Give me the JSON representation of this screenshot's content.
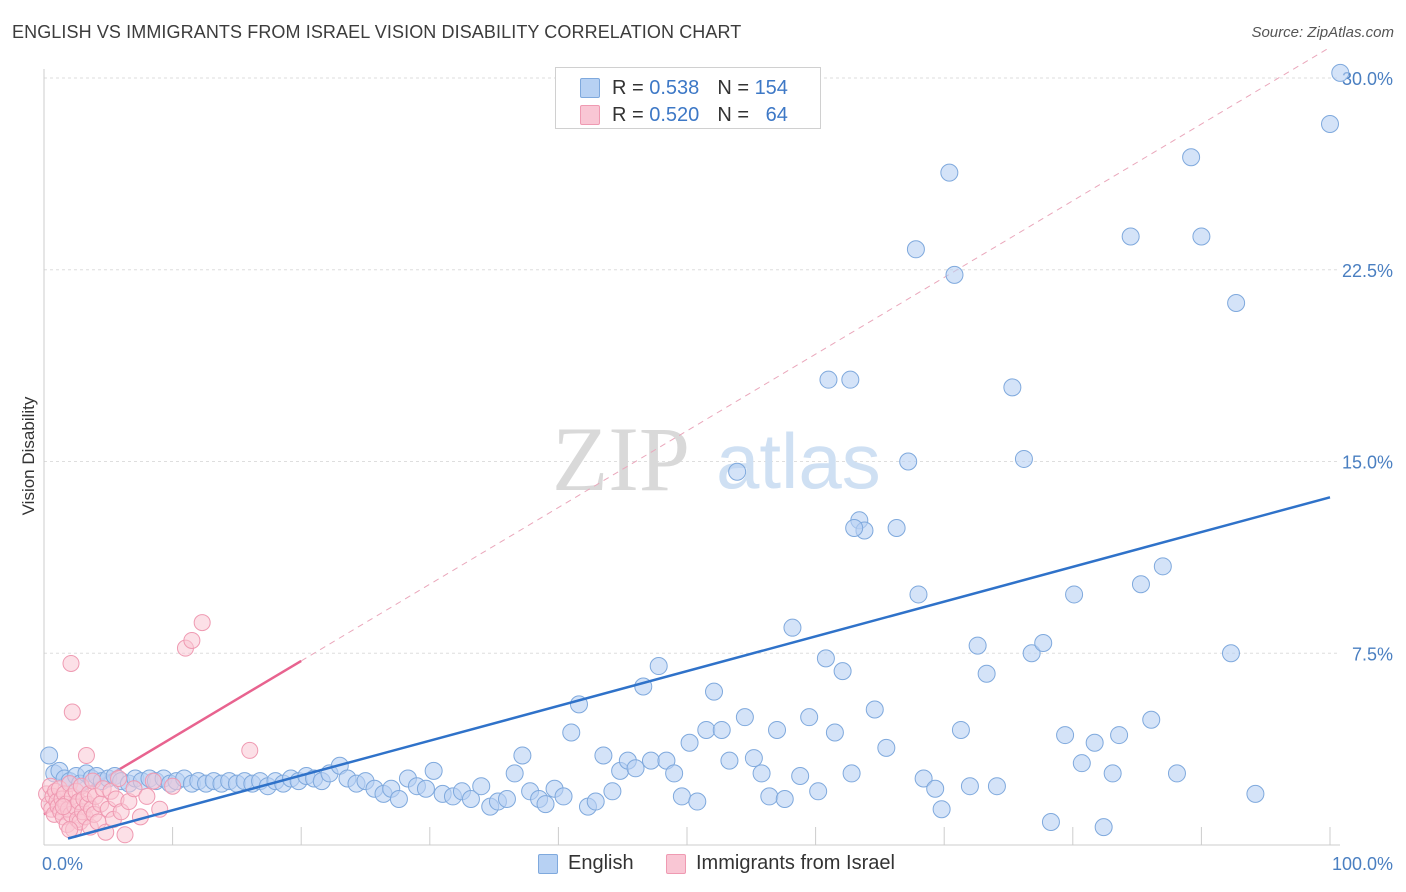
{
  "header": {
    "title": "ENGLISH VS IMMIGRANTS FROM ISRAEL VISION DISABILITY CORRELATION CHART",
    "source": "Source: ZipAtlas.com"
  },
  "legend": {
    "rows": [
      {
        "r_label": "R =",
        "r_value": "0.538",
        "n_label": "N =",
        "n_value": "154"
      },
      {
        "r_label": "R =",
        "r_value": "0.520",
        "n_label": "N =",
        "n_value": "64"
      }
    ],
    "bottom": [
      "English",
      "Immigrants from Israel"
    ]
  },
  "watermark": {
    "zip": "ZIP",
    "atlas": "atlas"
  },
  "colors": {
    "blue": "#4a7fc1",
    "blue_fill": "#b7d1f3",
    "pink": "#e8638f",
    "pink_fill": "#f9c6d4"
  },
  "chart_data": {
    "type": "scatter",
    "title": "ENGLISH VS IMMIGRANTS FROM ISRAEL VISION DISABILITY CORRELATION CHART",
    "xlabel": "",
    "ylabel": "Vision Disability",
    "xlim": [
      0,
      100
    ],
    "ylim": [
      0,
      30
    ],
    "x_tick_labels": [
      {
        "value": 0,
        "label": "0.0%"
      },
      {
        "value": 100,
        "label": "100.0%"
      }
    ],
    "y_tick_labels": [
      {
        "value": 7.5,
        "label": "7.5%"
      },
      {
        "value": 15,
        "label": "15.0%"
      },
      {
        "value": 22.5,
        "label": "22.5%"
      },
      {
        "value": 30,
        "label": "30.0%"
      }
    ],
    "series": [
      {
        "name": "English",
        "r": 0.538,
        "n": 154,
        "trend": {
          "x0": 0,
          "y0": 0,
          "x1": 100,
          "y1": 13.6
        },
        "points": [
          [
            0.4,
            3.5
          ],
          [
            0.8,
            2.8
          ],
          [
            1.2,
            2.9
          ],
          [
            1.6,
            2.6
          ],
          [
            2.0,
            2.5
          ],
          [
            2.5,
            2.7
          ],
          [
            2.8,
            2.4
          ],
          [
            3.3,
            2.8
          ],
          [
            3.7,
            2.6
          ],
          [
            4.1,
            2.7
          ],
          [
            4.5,
            2.5
          ],
          [
            5.0,
            2.6
          ],
          [
            5.5,
            2.7
          ],
          [
            6.0,
            2.5
          ],
          [
            6.6,
            2.4
          ],
          [
            7.1,
            2.6
          ],
          [
            7.6,
            2.5
          ],
          [
            8.2,
            2.6
          ],
          [
            8.7,
            2.5
          ],
          [
            9.3,
            2.6
          ],
          [
            9.8,
            2.4
          ],
          [
            10.3,
            2.5
          ],
          [
            10.9,
            2.6
          ],
          [
            11.5,
            2.4
          ],
          [
            12.0,
            2.5
          ],
          [
            12.6,
            2.4
          ],
          [
            13.2,
            2.5
          ],
          [
            13.8,
            2.4
          ],
          [
            14.4,
            2.5
          ],
          [
            15.0,
            2.4
          ],
          [
            15.6,
            2.5
          ],
          [
            16.2,
            2.4
          ],
          [
            16.8,
            2.5
          ],
          [
            17.4,
            2.3
          ],
          [
            18.0,
            2.5
          ],
          [
            18.6,
            2.4
          ],
          [
            19.2,
            2.6
          ],
          [
            19.8,
            2.5
          ],
          [
            20.4,
            2.7
          ],
          [
            21.0,
            2.6
          ],
          [
            21.6,
            2.5
          ],
          [
            22.2,
            2.8
          ],
          [
            23.0,
            3.1
          ],
          [
            23.6,
            2.6
          ],
          [
            24.3,
            2.4
          ],
          [
            25.0,
            2.5
          ],
          [
            25.7,
            2.2
          ],
          [
            26.4,
            2.0
          ],
          [
            27.0,
            2.2
          ],
          [
            27.6,
            1.8
          ],
          [
            28.3,
            2.6
          ],
          [
            29.0,
            2.3
          ],
          [
            29.7,
            2.2
          ],
          [
            30.3,
            2.9
          ],
          [
            31.0,
            2.0
          ],
          [
            31.8,
            1.9
          ],
          [
            32.5,
            2.1
          ],
          [
            33.2,
            1.8
          ],
          [
            34.0,
            2.3
          ],
          [
            34.7,
            1.5
          ],
          [
            35.3,
            1.7
          ],
          [
            36.0,
            1.8
          ],
          [
            36.6,
            2.8
          ],
          [
            37.2,
            3.5
          ],
          [
            37.8,
            2.1
          ],
          [
            38.5,
            1.8
          ],
          [
            39.0,
            1.6
          ],
          [
            39.7,
            2.2
          ],
          [
            40.4,
            1.9
          ],
          [
            41.0,
            4.4
          ],
          [
            41.6,
            5.5
          ],
          [
            42.3,
            1.5
          ],
          [
            42.9,
            1.7
          ],
          [
            43.5,
            3.5
          ],
          [
            44.2,
            2.1
          ],
          [
            44.8,
            2.9
          ],
          [
            45.4,
            3.3
          ],
          [
            46.0,
            3.0
          ],
          [
            46.6,
            6.2
          ],
          [
            47.2,
            3.3
          ],
          [
            47.8,
            7.0
          ],
          [
            48.4,
            3.3
          ],
          [
            49.0,
            2.8
          ],
          [
            49.6,
            1.9
          ],
          [
            50.2,
            4.0
          ],
          [
            50.8,
            1.7
          ],
          [
            51.5,
            4.5
          ],
          [
            52.1,
            6.0
          ],
          [
            52.7,
            4.5
          ],
          [
            53.3,
            3.3
          ],
          [
            53.9,
            14.6
          ],
          [
            54.5,
            5.0
          ],
          [
            55.2,
            3.4
          ],
          [
            55.8,
            2.8
          ],
          [
            56.4,
            1.9
          ],
          [
            57.0,
            4.5
          ],
          [
            57.6,
            1.8
          ],
          [
            58.2,
            8.5
          ],
          [
            58.8,
            2.7
          ],
          [
            59.5,
            5.0
          ],
          [
            60.2,
            2.1
          ],
          [
            60.8,
            7.3
          ],
          [
            61.0,
            18.2
          ],
          [
            61.5,
            4.4
          ],
          [
            62.1,
            6.8
          ],
          [
            62.8,
            2.8
          ],
          [
            63.4,
            12.7
          ],
          [
            63.8,
            12.3
          ],
          [
            64.6,
            5.3
          ],
          [
            65.5,
            3.8
          ],
          [
            66.3,
            12.4
          ],
          [
            67.2,
            15.0
          ],
          [
            67.8,
            23.3
          ],
          [
            68.0,
            9.8
          ],
          [
            68.4,
            2.6
          ],
          [
            69.3,
            2.2
          ],
          [
            69.8,
            1.4
          ],
          [
            70.4,
            26.3
          ],
          [
            70.8,
            22.3
          ],
          [
            71.3,
            4.5
          ],
          [
            72.0,
            2.3
          ],
          [
            72.6,
            7.8
          ],
          [
            73.3,
            6.7
          ],
          [
            74.1,
            2.3
          ],
          [
            75.3,
            17.9
          ],
          [
            76.2,
            15.1
          ],
          [
            76.8,
            7.5
          ],
          [
            77.7,
            7.9
          ],
          [
            78.3,
            0.9
          ],
          [
            79.4,
            4.3
          ],
          [
            80.1,
            9.8
          ],
          [
            80.7,
            3.2
          ],
          [
            81.7,
            4.0
          ],
          [
            82.4,
            0.7
          ],
          [
            83.1,
            2.8
          ],
          [
            83.6,
            4.3
          ],
          [
            84.5,
            23.8
          ],
          [
            85.3,
            10.2
          ],
          [
            86.1,
            4.9
          ],
          [
            87.0,
            10.9
          ],
          [
            88.1,
            2.8
          ],
          [
            89.2,
            26.9
          ],
          [
            90.0,
            23.8
          ],
          [
            92.3,
            7.5
          ],
          [
            92.7,
            21.2
          ],
          [
            94.2,
            2.0
          ],
          [
            100.0,
            28.2
          ],
          [
            100.8,
            30.2
          ],
          [
            62.7,
            18.2
          ],
          [
            63.0,
            12.4
          ]
        ]
      },
      {
        "name": "Immigrants from Israel",
        "r": 0.52,
        "n": 64,
        "trend": {
          "x0": 0,
          "y0": 1.2,
          "x1": 20,
          "y1": 7.2
        },
        "points": [
          [
            0.2,
            2.0
          ],
          [
            0.4,
            1.6
          ],
          [
            0.5,
            2.3
          ],
          [
            0.6,
            1.4
          ],
          [
            0.7,
            1.9
          ],
          [
            0.8,
            1.2
          ],
          [
            0.9,
            2.1
          ],
          [
            1.0,
            1.7
          ],
          [
            1.1,
            1.5
          ],
          [
            1.2,
            2.2
          ],
          [
            1.3,
            1.3
          ],
          [
            1.4,
            1.8
          ],
          [
            1.5,
            1.1
          ],
          [
            1.6,
            2.0
          ],
          [
            1.7,
            1.6
          ],
          [
            1.8,
            0.8
          ],
          [
            1.9,
            1.4
          ],
          [
            2.0,
            2.4
          ],
          [
            2.1,
            1.2
          ],
          [
            2.2,
            1.9
          ],
          [
            2.3,
            0.6
          ],
          [
            2.4,
            1.5
          ],
          [
            2.5,
            2.1
          ],
          [
            2.6,
            1.0
          ],
          [
            2.7,
            1.7
          ],
          [
            2.8,
            0.9
          ],
          [
            2.9,
            2.3
          ],
          [
            3.0,
            1.3
          ],
          [
            3.1,
            1.8
          ],
          [
            3.2,
            1.1
          ],
          [
            3.3,
            3.5
          ],
          [
            3.4,
            1.6
          ],
          [
            3.5,
            2.0
          ],
          [
            3.6,
            0.7
          ],
          [
            3.7,
            1.4
          ],
          [
            3.8,
            2.5
          ],
          [
            3.9,
            1.2
          ],
          [
            4.0,
            1.9
          ],
          [
            4.2,
            0.9
          ],
          [
            4.4,
            1.6
          ],
          [
            4.6,
            2.2
          ],
          [
            4.8,
            0.5
          ],
          [
            5.0,
            1.4
          ],
          [
            5.2,
            2.1
          ],
          [
            5.4,
            1.0
          ],
          [
            5.6,
            1.8
          ],
          [
            5.8,
            2.6
          ],
          [
            6.0,
            1.3
          ],
          [
            6.3,
            0.4
          ],
          [
            6.6,
            1.7
          ],
          [
            7.0,
            2.2
          ],
          [
            7.5,
            1.1
          ],
          [
            8.0,
            1.9
          ],
          [
            8.5,
            2.5
          ],
          [
            9.0,
            1.4
          ],
          [
            10.0,
            2.3
          ],
          [
            11.0,
            7.7
          ],
          [
            11.5,
            8.0
          ],
          [
            12.3,
            8.7
          ],
          [
            2.1,
            7.1
          ],
          [
            2.2,
            5.2
          ],
          [
            16.0,
            3.7
          ],
          [
            2.0,
            0.6
          ],
          [
            1.5,
            1.5
          ]
        ]
      }
    ]
  }
}
